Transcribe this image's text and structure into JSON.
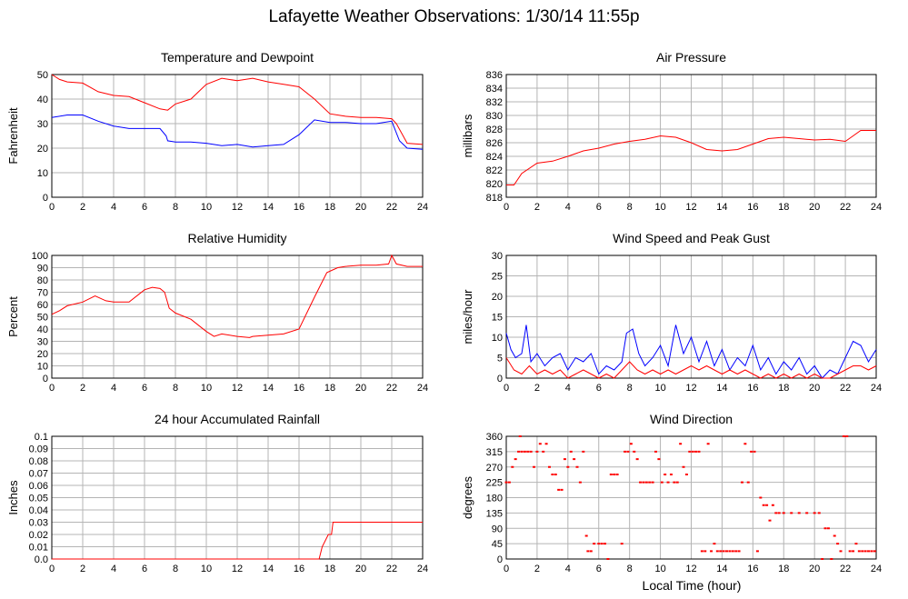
{
  "title": "Lafayette Weather Observations: 1/30/14 11:55p",
  "xlabel_bottom": "Local Time (hour)",
  "colors": {
    "red": "#ff0000",
    "blue": "#0000ff",
    "grid": "#b4b4b4"
  },
  "chart_data": [
    {
      "type": "line",
      "title": "Temperature and Dewpoint",
      "ylabel": "Fahrenheit",
      "xlim": [
        0,
        24
      ],
      "ylim": [
        0,
        50
      ],
      "xticks": [
        0,
        2,
        4,
        6,
        8,
        10,
        12,
        14,
        16,
        18,
        20,
        22,
        24
      ],
      "yticks": [
        0,
        10,
        20,
        30,
        40,
        50
      ],
      "grid": true,
      "series": [
        {
          "color": "#ff0000",
          "x": [
            0,
            0.5,
            1,
            2,
            3,
            4,
            5,
            6,
            7,
            7.5,
            8,
            9,
            9.5,
            10,
            11,
            12,
            13,
            14,
            15,
            16,
            17,
            18,
            19,
            20,
            21,
            22,
            22.3,
            23,
            24
          ],
          "y": [
            50,
            48,
            47,
            46.5,
            43,
            41.5,
            41,
            38.5,
            36,
            35.5,
            38,
            40,
            43,
            46,
            48.5,
            47.5,
            48.5,
            47,
            46,
            45,
            40,
            34,
            33,
            32.5,
            32.5,
            32,
            30,
            22,
            21.5
          ]
        },
        {
          "color": "#0000ff",
          "x": [
            0,
            1,
            2,
            3,
            4,
            5,
            6,
            7,
            7.4,
            7.5,
            8,
            9,
            10,
            11,
            12,
            13,
            14,
            15,
            16,
            17,
            18,
            19,
            20,
            21,
            22,
            22.5,
            23,
            24
          ],
          "y": [
            32.5,
            33.5,
            33.5,
            31,
            29,
            28,
            28,
            28,
            25,
            23,
            22.5,
            22.5,
            22,
            21,
            21.5,
            20.5,
            21,
            21.5,
            25.5,
            31.5,
            30.5,
            30.5,
            30,
            30,
            31,
            23,
            20,
            19.5
          ]
        }
      ]
    },
    {
      "type": "line",
      "title": "Air Pressure",
      "ylabel": "millibars",
      "xlim": [
        0,
        24
      ],
      "ylim": [
        818,
        836
      ],
      "xticks": [
        0,
        2,
        4,
        6,
        8,
        10,
        12,
        14,
        16,
        18,
        20,
        22,
        24
      ],
      "yticks": [
        818,
        820,
        822,
        824,
        826,
        828,
        830,
        832,
        834,
        836
      ],
      "grid": true,
      "series": [
        {
          "color": "#ff0000",
          "x": [
            0,
            0.5,
            1,
            2,
            3,
            4,
            5,
            6,
            7,
            8,
            9,
            10,
            11,
            12,
            13,
            14,
            15,
            16,
            17,
            18,
            19,
            20,
            21,
            22,
            22.5,
            23,
            24
          ],
          "y": [
            819.8,
            819.8,
            821.5,
            823,
            823.3,
            824,
            824.8,
            825.2,
            825.8,
            826.2,
            826.5,
            827,
            826.8,
            826,
            825,
            824.8,
            825,
            825.8,
            826.6,
            826.8,
            826.6,
            826.4,
            826.5,
            826.2,
            827,
            827.8,
            827.8
          ]
        }
      ]
    },
    {
      "type": "line",
      "title": "Relative Humidity",
      "ylabel": "Percent",
      "xlim": [
        0,
        24
      ],
      "ylim": [
        0,
        100
      ],
      "xticks": [
        0,
        2,
        4,
        6,
        8,
        10,
        12,
        14,
        16,
        18,
        20,
        22,
        24
      ],
      "yticks": [
        0,
        10,
        20,
        30,
        40,
        50,
        60,
        70,
        80,
        90,
        100
      ],
      "grid": true,
      "series": [
        {
          "color": "#ff0000",
          "x": [
            0,
            0.5,
            1,
            2,
            2.8,
            3.5,
            4,
            5,
            6,
            6.5,
            7,
            7.3,
            7.6,
            8,
            9,
            10,
            10.5,
            11,
            12,
            12.8,
            13,
            14,
            15,
            16,
            17,
            17.8,
            18.5,
            19,
            20,
            21,
            21.8,
            22,
            22.3,
            23,
            24
          ],
          "y": [
            52,
            55,
            59,
            62,
            67,
            63,
            62,
            62,
            72,
            74,
            73,
            70,
            57,
            53,
            48,
            38,
            34,
            36,
            34,
            33,
            34,
            35,
            36,
            40,
            66,
            86,
            90,
            91,
            92,
            92,
            93,
            100,
            93,
            91,
            91
          ]
        }
      ]
    },
    {
      "type": "line",
      "title": "Wind Speed and Peak Gust",
      "ylabel": "miles/hour",
      "xlim": [
        0,
        24
      ],
      "ylim": [
        0,
        30
      ],
      "xticks": [
        0,
        2,
        4,
        6,
        8,
        10,
        12,
        14,
        16,
        18,
        20,
        22,
        24
      ],
      "yticks": [
        0,
        5,
        10,
        15,
        20,
        25,
        30
      ],
      "grid": true,
      "series": [
        {
          "color": "#0000ff",
          "x": [
            0,
            0.3,
            0.6,
            1,
            1.3,
            1.6,
            2,
            2.5,
            3,
            3.5,
            4,
            4.5,
            5,
            5.5,
            6,
            6.5,
            7,
            7.5,
            7.8,
            8.2,
            8.6,
            9,
            9.5,
            10,
            10.5,
            11,
            11.5,
            12,
            12.5,
            13,
            13.5,
            14,
            14.5,
            15,
            15.5,
            16,
            16.5,
            17,
            17.5,
            18,
            18.5,
            19,
            19.5,
            20,
            20.5,
            21,
            21.5,
            22,
            22.5,
            23,
            23.5,
            24
          ],
          "y": [
            11,
            7,
            5,
            6,
            13,
            4,
            6,
            3,
            5,
            6,
            2,
            5,
            4,
            6,
            1,
            3,
            2,
            4,
            11,
            12,
            6,
            3,
            5,
            8,
            3,
            13,
            6,
            10,
            4,
            9,
            3,
            7,
            2,
            5,
            3,
            8,
            2,
            5,
            1,
            4,
            2,
            5,
            1,
            3,
            0,
            2,
            1,
            5,
            9,
            8,
            4,
            7
          ]
        },
        {
          "color": "#ff0000",
          "x": [
            0,
            0.5,
            1,
            1.5,
            2,
            2.5,
            3,
            3.5,
            4,
            4.5,
            5,
            5.5,
            6,
            6.5,
            7,
            7.5,
            8,
            8.5,
            9,
            9.5,
            10,
            10.5,
            11,
            11.5,
            12,
            12.5,
            13,
            13.5,
            14,
            14.5,
            15,
            15.5,
            16,
            16.5,
            17,
            17.5,
            18,
            18.5,
            19,
            19.5,
            20,
            20.5,
            21,
            21.5,
            22,
            22.5,
            23,
            23.5,
            24
          ],
          "y": [
            5,
            2,
            1,
            3,
            1,
            2,
            1,
            2,
            0,
            1,
            2,
            1,
            0,
            1,
            0,
            2,
            4,
            2,
            1,
            2,
            1,
            2,
            1,
            2,
            3,
            2,
            3,
            2,
            1,
            2,
            1,
            2,
            1,
            0,
            1,
            0,
            1,
            0,
            1,
            0,
            1,
            0,
            0,
            1,
            2,
            3,
            3,
            2,
            3
          ]
        }
      ]
    },
    {
      "type": "line",
      "title": "24 hour Accumulated Rainfall",
      "ylabel": "Inches",
      "xlim": [
        0,
        24
      ],
      "ylim": [
        0,
        0.1
      ],
      "xticks": [
        0,
        2,
        4,
        6,
        8,
        10,
        12,
        14,
        16,
        18,
        20,
        22,
        24
      ],
      "yticks": [
        "0.0",
        "0.01",
        "0.02",
        "0.03",
        "0.04",
        "0.05",
        "0.06",
        "0.07",
        "0.08",
        "0.09",
        "0.1"
      ],
      "grid": true,
      "series": [
        {
          "color": "#ff0000",
          "x": [
            0,
            17.3,
            17.5,
            17.9,
            17.95,
            18.1,
            18.2,
            24
          ],
          "y": [
            0,
            0,
            0.01,
            0.02,
            0.02,
            0.02,
            0.03,
            0.03
          ]
        }
      ]
    },
    {
      "type": "scatter",
      "title": "Wind Direction",
      "ylabel": "degrees",
      "xlabel": "Local Time (hour)",
      "xlim": [
        0,
        24
      ],
      "ylim": [
        0,
        360
      ],
      "xticks": [
        0,
        2,
        4,
        6,
        8,
        10,
        12,
        14,
        16,
        18,
        20,
        22,
        24
      ],
      "yticks": [
        0,
        45,
        90,
        135,
        180,
        225,
        270,
        315,
        360
      ],
      "grid": true,
      "series": [
        {
          "color": "#ff0000",
          "points": [
            [
              0,
              225
            ],
            [
              0.2,
              225
            ],
            [
              0.4,
              270
            ],
            [
              0.6,
              293
            ],
            [
              0.8,
              315
            ],
            [
              0.9,
              360
            ],
            [
              1,
              315
            ],
            [
              1.2,
              315
            ],
            [
              1.4,
              315
            ],
            [
              1.6,
              315
            ],
            [
              1.8,
              270
            ],
            [
              2,
              315
            ],
            [
              2.2,
              338
            ],
            [
              2.4,
              315
            ],
            [
              2.6,
              338
            ],
            [
              2.8,
              270
            ],
            [
              3,
              248
            ],
            [
              3.2,
              248
            ],
            [
              3.4,
              203
            ],
            [
              3.6,
              203
            ],
            [
              3.8,
              293
            ],
            [
              4,
              270
            ],
            [
              4.2,
              315
            ],
            [
              4.4,
              293
            ],
            [
              4.6,
              270
            ],
            [
              4.8,
              225
            ],
            [
              5,
              315
            ],
            [
              5.2,
              68
            ],
            [
              5.3,
              23
            ],
            [
              5.5,
              23
            ],
            [
              5.7,
              45
            ],
            [
              6,
              45
            ],
            [
              6.2,
              45
            ],
            [
              6.4,
              45
            ],
            [
              6.6,
              0
            ],
            [
              6.8,
              248
            ],
            [
              7,
              248
            ],
            [
              7.2,
              248
            ],
            [
              7.5,
              45
            ],
            [
              7.7,
              315
            ],
            [
              7.9,
              315
            ],
            [
              8.1,
              338
            ],
            [
              8.3,
              315
            ],
            [
              8.5,
              293
            ],
            [
              8.7,
              225
            ],
            [
              8.9,
              225
            ],
            [
              9.1,
              225
            ],
            [
              9.3,
              225
            ],
            [
              9.5,
              225
            ],
            [
              9.7,
              315
            ],
            [
              9.9,
              293
            ],
            [
              10.1,
              225
            ],
            [
              10.3,
              248
            ],
            [
              10.5,
              225
            ],
            [
              10.7,
              248
            ],
            [
              10.9,
              225
            ],
            [
              11.1,
              225
            ],
            [
              11.3,
              338
            ],
            [
              11.5,
              270
            ],
            [
              11.7,
              248
            ],
            [
              11.9,
              315
            ],
            [
              12.1,
              315
            ],
            [
              12.3,
              315
            ],
            [
              12.5,
              315
            ],
            [
              12.7,
              23
            ],
            [
              12.9,
              23
            ],
            [
              13.1,
              338
            ],
            [
              13.3,
              23
            ],
            [
              13.5,
              45
            ],
            [
              13.7,
              23
            ],
            [
              13.9,
              23
            ],
            [
              14.1,
              23
            ],
            [
              14.3,
              23
            ],
            [
              14.5,
              23
            ],
            [
              14.7,
              23
            ],
            [
              14.9,
              23
            ],
            [
              15.1,
              23
            ],
            [
              15.3,
              225
            ],
            [
              15.5,
              338
            ],
            [
              15.7,
              225
            ],
            [
              15.9,
              315
            ],
            [
              16.1,
              315
            ],
            [
              16.3,
              23
            ],
            [
              16.5,
              180
            ],
            [
              16.7,
              158
            ],
            [
              16.9,
              158
            ],
            [
              17.1,
              113
            ],
            [
              17.3,
              158
            ],
            [
              17.5,
              135
            ],
            [
              17.7,
              135
            ],
            [
              18,
              135
            ],
            [
              18.5,
              135
            ],
            [
              19,
              135
            ],
            [
              19.5,
              135
            ],
            [
              20,
              135
            ],
            [
              20.3,
              135
            ],
            [
              20.5,
              0
            ],
            [
              20.7,
              90
            ],
            [
              20.9,
              90
            ],
            [
              21.1,
              0
            ],
            [
              21.3,
              68
            ],
            [
              21.5,
              45
            ],
            [
              21.7,
              23
            ],
            [
              21.9,
              360
            ],
            [
              22.1,
              360
            ],
            [
              22.3,
              23
            ],
            [
              22.5,
              23
            ],
            [
              22.7,
              45
            ],
            [
              22.9,
              23
            ],
            [
              23.1,
              23
            ],
            [
              23.3,
              23
            ],
            [
              23.5,
              23
            ],
            [
              23.7,
              23
            ],
            [
              23.9,
              23
            ]
          ]
        }
      ]
    }
  ]
}
